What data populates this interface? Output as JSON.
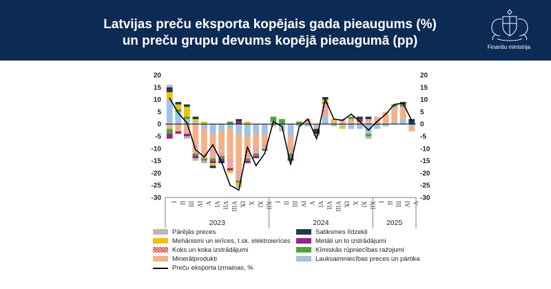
{
  "header": {
    "title_line1": "Latvijas preču eksporta kopējais gada pieaugums (%)",
    "title_line2": "un preču grupu devums kopējā pieaugumā (pp)",
    "logo_text": "Finanšu ministrija",
    "logo_icon": "latvia-coat-of-arms-icon",
    "background_color": "#0b2a54"
  },
  "chart_data": {
    "type": "bar",
    "stacked": true,
    "ylim": [
      -30,
      20
    ],
    "yticks": [
      "20",
      "15",
      "10",
      "5",
      "0",
      "-5",
      "-10",
      "-15",
      "-20",
      "-25",
      "-30"
    ],
    "categories": [
      "I",
      "II",
      "III",
      "IV",
      "V",
      "VI",
      "VII",
      "VIII",
      "IX",
      "X",
      "XI",
      "XII",
      "I",
      "II",
      "III",
      "IV",
      "V",
      "VI",
      "VII",
      "VIII",
      "IX",
      "X",
      "XI",
      "XII",
      "I",
      "II",
      "III",
      "IV",
      "V"
    ],
    "years": [
      {
        "label": "2023",
        "from": 0,
        "to": 11
      },
      {
        "label": "2024",
        "from": 12,
        "to": 23
      },
      {
        "label": "2025",
        "from": 24,
        "to": 28
      }
    ],
    "series": [
      {
        "name": "Lauksaimniecības preces un pārtika",
        "color": "#9dc3e6",
        "values": [
          10,
          5,
          2,
          1,
          -2,
          -4,
          -3,
          -2,
          -4,
          -5,
          -4,
          -4,
          1,
          -2,
          -5,
          -1,
          -1,
          -1,
          3,
          -1,
          -1,
          -2,
          -2,
          -4,
          -2,
          -1,
          1,
          2,
          -1
        ]
      },
      {
        "name": "Minerālprodukti",
        "color": "#f4b183",
        "values": [
          -2,
          -3,
          -4,
          -8,
          -10,
          -6,
          -8,
          -12,
          -15,
          -6,
          -5,
          -4,
          -1,
          -1,
          -4,
          0,
          1,
          0,
          1,
          0,
          1,
          1,
          1,
          1,
          3,
          5,
          5,
          4,
          -2
        ]
      },
      {
        "name": "Koks un koka izstrādājumi",
        "color": "#e87b7b",
        "hatch": true,
        "values": [
          0,
          0,
          0,
          -4,
          -2,
          -4,
          -2,
          -4,
          -4,
          -3,
          -3,
          -2,
          0,
          0,
          -3,
          0,
          1,
          -1,
          4,
          1,
          1,
          1,
          0,
          1,
          0,
          0,
          1,
          1,
          0
        ]
      },
      {
        "name": "Ķīmiskās rūpniecības ražojumi",
        "color": "#4ea72e",
        "values": [
          -2,
          1,
          1,
          -1,
          -1,
          -1,
          -1,
          1,
          -1,
          -1,
          -1,
          -1,
          2,
          2,
          -2,
          1,
          0,
          0,
          1,
          0,
          0,
          1,
          0,
          -1,
          0,
          0,
          1,
          1,
          0
        ]
      },
      {
        "name": "Metāli un to izstrādājumi",
        "color": "#a0208a",
        "values": [
          -2,
          -1,
          -1,
          -1,
          0,
          -1,
          -1,
          -1,
          1,
          -1,
          -1,
          0,
          0,
          0,
          -1,
          0,
          0,
          0,
          0,
          0,
          0,
          0,
          1,
          0,
          0,
          0,
          0,
          0,
          0
        ]
      },
      {
        "name": "Mehānismi un ierīces, t.sk. elektroierīces",
        "color": "#f5c000",
        "values": [
          3,
          2,
          4,
          1,
          1,
          -1,
          0,
          -1,
          -1,
          1,
          0,
          0,
          0,
          0,
          0,
          0,
          0,
          0,
          1,
          1,
          -1,
          0,
          0,
          0,
          0,
          0,
          0,
          0,
          0
        ]
      },
      {
        "name": "Satiksmes līdzekļi",
        "color": "#1c3a4f",
        "values": [
          2,
          1,
          1,
          1,
          0,
          -1,
          -1,
          0,
          1,
          0,
          0,
          0,
          0,
          0,
          0,
          0,
          0,
          -2,
          1,
          0,
          0,
          0,
          1,
          1,
          0,
          0,
          0,
          1,
          2
        ]
      },
      {
        "name": "Pārējās preces",
        "color": "#b7b7b7",
        "values": [
          1,
          0,
          -1,
          -1,
          -1,
          0,
          0,
          0,
          -1,
          0,
          0,
          0,
          0,
          0,
          0,
          0,
          0,
          -1,
          0,
          0,
          0,
          0,
          0,
          -1,
          0,
          0,
          0,
          0,
          0
        ]
      }
    ],
    "line": {
      "name": "Preču eksporta izmaiņas, %",
      "color": "#000000",
      "values": [
        10.5,
        4.5,
        0.5,
        -10.5,
        -13.5,
        -8.5,
        -15.5,
        -25,
        -27,
        -9.5,
        -17,
        -12,
        1,
        -1,
        -16.5,
        -1,
        2,
        -6,
        10,
        2,
        1.5,
        4,
        1,
        -2.5,
        1,
        4,
        8,
        8.5,
        1.5
      ]
    },
    "legend_position": "bottom",
    "grid": false
  },
  "legend": [
    {
      "label": "Pārējās preces",
      "color": "#b7b7b7",
      "kind": "bar"
    },
    {
      "label": "Satiksmes līdzekļi",
      "color": "#1c3a4f",
      "kind": "bar"
    },
    {
      "label": "Mehānismi un ierīces, t.sk. elektroierīces",
      "color": "#f5c000",
      "kind": "bar"
    },
    {
      "label": "Metāli un to izstrādājumi",
      "color": "#a0208a",
      "kind": "bar"
    },
    {
      "label": "Koks un koka izstrādājumi",
      "color": "#e87b7b",
      "kind": "hatch"
    },
    {
      "label": "Ķīmiskās rūpniecības ražojumi",
      "color": "#4ea72e",
      "kind": "bar"
    },
    {
      "label": "Minerālprodukti",
      "color": "#f4b183",
      "kind": "bar"
    },
    {
      "label": "Lauksaimniecības preces un pārtika",
      "color": "#9dc3e6",
      "kind": "bar"
    },
    {
      "label": "Preču eksporta izmaiņas, %",
      "color": "#000000",
      "kind": "line"
    }
  ]
}
